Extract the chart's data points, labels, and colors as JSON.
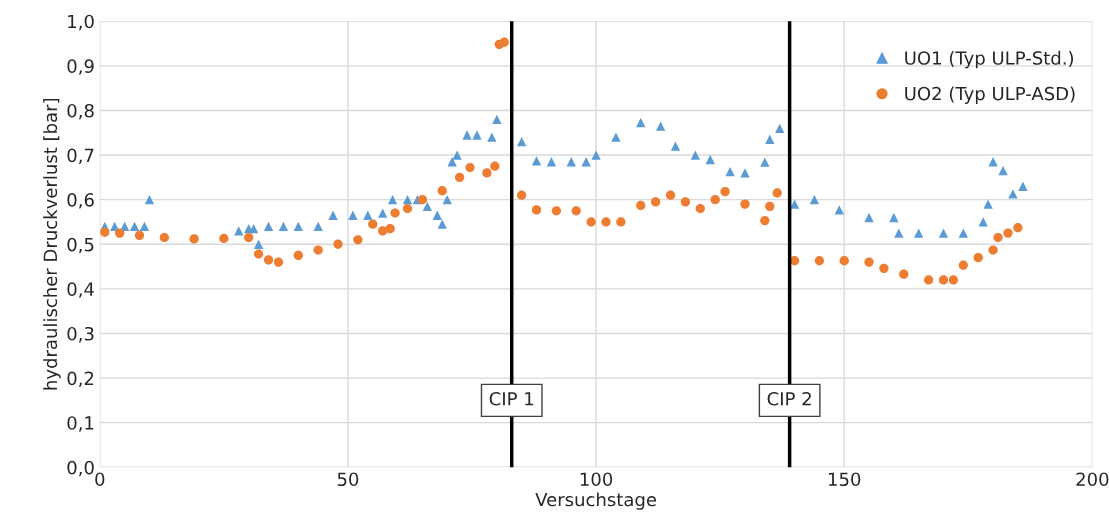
{
  "chart_data": {
    "type": "scatter",
    "xlabel": "Versuchstage",
    "ylabel": "hydraulischer Druckverlust [bar]",
    "xlim": [
      0,
      200
    ],
    "xticks": [
      0,
      50,
      100,
      150,
      200
    ],
    "ylim": [
      0,
      1
    ],
    "yticks": [
      {
        "value": 0,
        "label": "0,0"
      },
      {
        "value": 0.1,
        "label": "0,1"
      },
      {
        "value": 0.2,
        "label": "0,2"
      },
      {
        "value": 0.3,
        "label": "0,3"
      },
      {
        "value": 0.4,
        "label": "0,4"
      },
      {
        "value": 0.5,
        "label": "0,5"
      },
      {
        "value": 0.6,
        "label": "0,6"
      },
      {
        "value": 0.7,
        "label": "0,7"
      },
      {
        "value": 0.8,
        "label": "0,8"
      },
      {
        "value": 0.9,
        "label": "0,9"
      },
      {
        "value": 1.0,
        "label": "1,0"
      }
    ],
    "grid": true,
    "legend": "top right",
    "ref_lines": [
      {
        "axis": "x",
        "value": 83,
        "label": "CIP 1",
        "color": "#000000"
      },
      {
        "axis": "x",
        "value": 139,
        "label": "CIP 2",
        "color": "#000000"
      }
    ],
    "series": [
      {
        "name": "UO1 (Typ ULP-Std.)",
        "color": "#5b9bd5",
        "marker": "triangle",
        "x": [
          1,
          3,
          5,
          7,
          9,
          10,
          28,
          30,
          31,
          32,
          34,
          37,
          40,
          44,
          47,
          51,
          54,
          57,
          59,
          62,
          64,
          66,
          68,
          69,
          70,
          71,
          72,
          74,
          76,
          79,
          80,
          85,
          88,
          91,
          95,
          98,
          100,
          104,
          109,
          113,
          116,
          120,
          123,
          127,
          130,
          134,
          135,
          137,
          140,
          144,
          149,
          155,
          160,
          161,
          165,
          170,
          174,
          178,
          179,
          180,
          182,
          184,
          186
        ],
        "values": [
          0.54,
          0.54,
          0.54,
          0.54,
          0.54,
          0.6,
          0.53,
          0.535,
          0.535,
          0.5,
          0.54,
          0.54,
          0.54,
          0.54,
          0.565,
          0.565,
          0.565,
          0.57,
          0.6,
          0.6,
          0.6,
          0.585,
          0.565,
          0.545,
          0.6,
          0.685,
          0.7,
          0.745,
          0.745,
          0.74,
          0.78,
          0.73,
          0.687,
          0.685,
          0.685,
          0.685,
          0.7,
          0.74,
          0.773,
          0.765,
          0.72,
          0.7,
          0.69,
          0.663,
          0.66,
          0.684,
          0.735,
          0.76,
          0.59,
          0.6,
          0.577,
          0.56,
          0.56,
          0.525,
          0.525,
          0.525,
          0.525,
          0.55,
          0.59,
          0.685,
          0.665,
          0.613,
          0.63
        ]
      },
      {
        "name": "UO2 (Typ ULP-ASD)",
        "color": "#ed7d31",
        "marker": "circle",
        "x": [
          1,
          4,
          8,
          13,
          19,
          25,
          30,
          32,
          34,
          36,
          40,
          44,
          48,
          52,
          55,
          57,
          58.5,
          59.5,
          62,
          65,
          69,
          72.5,
          74.6,
          78,
          79.6,
          80.5,
          81.5,
          85,
          88,
          92,
          96,
          99,
          102,
          105,
          109,
          112,
          115,
          118,
          121,
          124,
          126,
          130,
          134,
          135,
          136.5,
          140,
          145,
          150,
          155,
          158,
          162,
          167,
          170,
          172,
          174,
          177,
          180,
          181,
          183,
          185
        ],
        "values": [
          0.527,
          0.525,
          0.52,
          0.515,
          0.512,
          0.513,
          0.515,
          0.478,
          0.465,
          0.46,
          0.475,
          0.487,
          0.5,
          0.51,
          0.545,
          0.53,
          0.535,
          0.57,
          0.58,
          0.6,
          0.62,
          0.65,
          0.672,
          0.66,
          0.675,
          0.948,
          0.953,
          0.61,
          0.577,
          0.575,
          0.575,
          0.55,
          0.55,
          0.55,
          0.587,
          0.595,
          0.61,
          0.595,
          0.58,
          0.6,
          0.618,
          0.59,
          0.553,
          0.585,
          0.615,
          0.463,
          0.463,
          0.463,
          0.46,
          0.446,
          0.433,
          0.42,
          0.42,
          0.42,
          0.453,
          0.47,
          0.487,
          0.515,
          0.525,
          0.537
        ]
      }
    ]
  }
}
